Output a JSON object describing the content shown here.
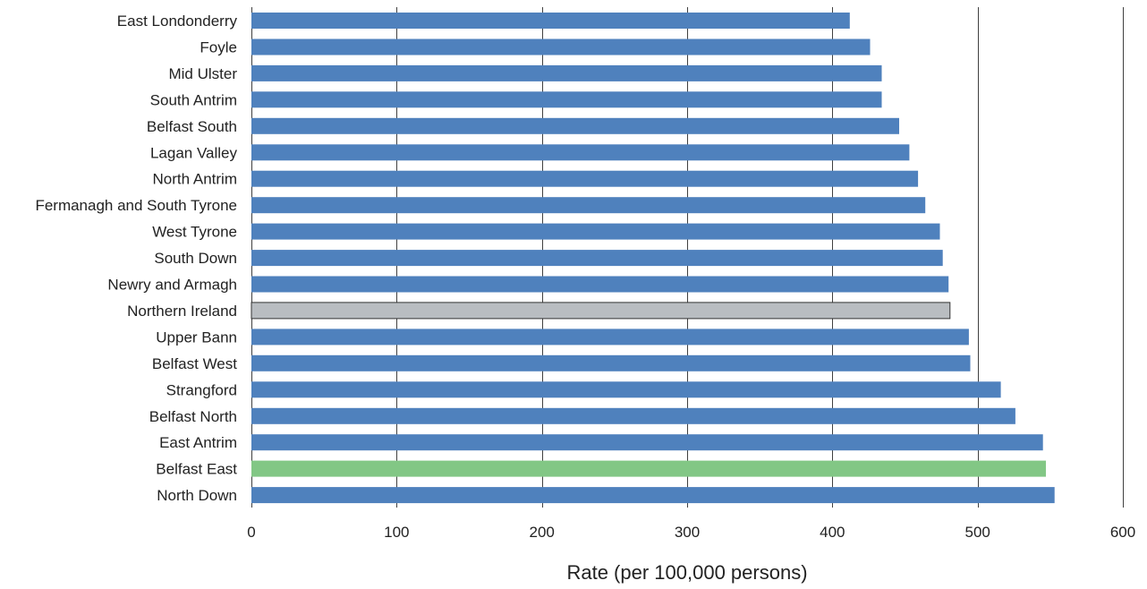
{
  "chart_data": {
    "type": "bar",
    "orientation": "horizontal",
    "title": "",
    "xlabel": "Rate (per 100,000 persons)",
    "ylabel": "",
    "xlim": [
      0,
      600
    ],
    "xticks": [
      0,
      100,
      200,
      300,
      400,
      500,
      600
    ],
    "xtick_labels": [
      "0",
      "100",
      "200",
      "300",
      "400",
      "500",
      "600"
    ],
    "grid": "vertical",
    "legend": "none",
    "categories": [
      "East Londonderry",
      "Foyle",
      "Mid Ulster",
      "South Antrim",
      "Belfast South",
      "Lagan Valley",
      "North Antrim",
      "Fermanagh and South Tyrone",
      "West Tyrone",
      "South Down",
      "Newry and Armagh",
      "Northern Ireland",
      "Upper Bann",
      "Belfast West",
      "Strangford",
      "Belfast North",
      "East Antrim",
      "Belfast East",
      "North Down"
    ],
    "values": [
      412,
      426,
      434,
      434,
      446,
      453,
      459,
      464,
      474,
      476,
      480,
      481,
      494,
      495,
      516,
      526,
      545,
      547,
      553
    ],
    "colors": {
      "default": "#4f81bd",
      "highlight_total": "#b9bdc1",
      "highlight_selected": "#82c785",
      "grid": "#404040",
      "text": "#222222"
    },
    "highlights": {
      "Northern Ireland": "highlight_total",
      "Belfast East": "highlight_selected"
    }
  }
}
